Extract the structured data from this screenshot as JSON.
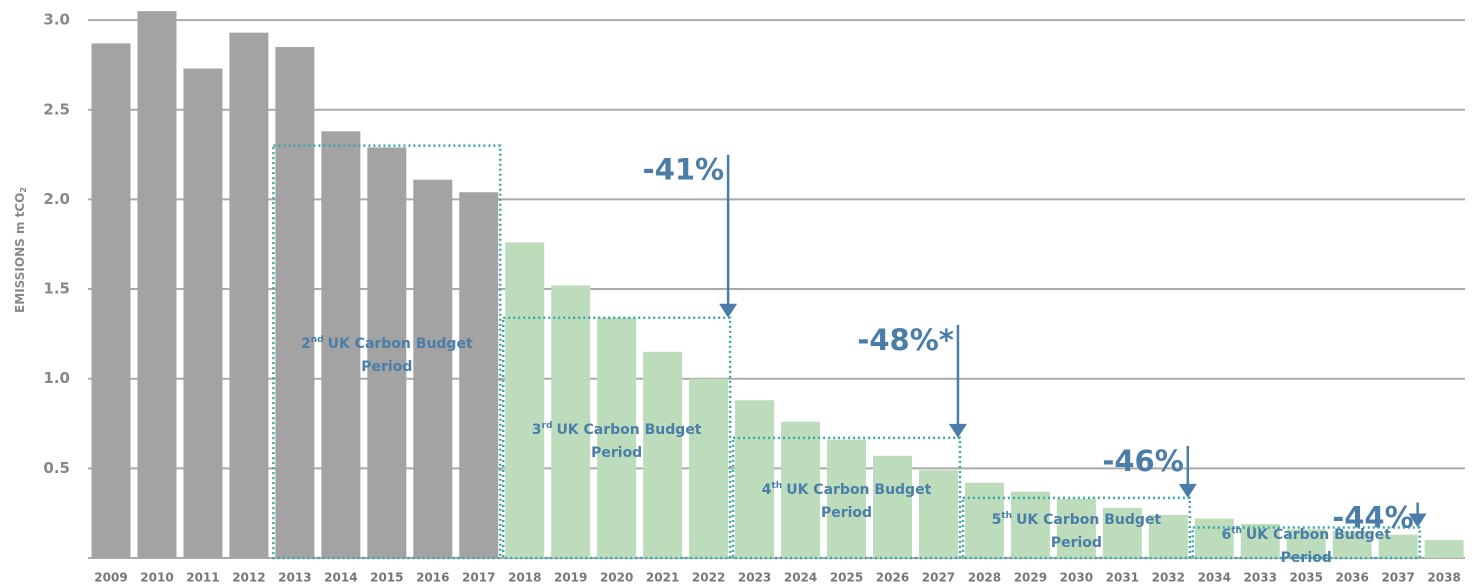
{
  "chart_data": {
    "type": "bar",
    "y_label": "EMISSIONS m tCO",
    "y_label_sub": "2",
    "categories": [
      "2009",
      "2010",
      "2011",
      "2012",
      "2013",
      "2014",
      "2015",
      "2016",
      "2017",
      "2018",
      "2019",
      "2020",
      "2021",
      "2022",
      "2023",
      "2024",
      "2025",
      "2026",
      "2027",
      "2028",
      "2029",
      "2030",
      "2031",
      "2032",
      "2034",
      "2033",
      "2035",
      "2036",
      "2037",
      "2038"
    ],
    "values": [
      2.87,
      3.05,
      2.73,
      2.93,
      2.85,
      2.38,
      2.29,
      2.11,
      2.04,
      1.76,
      1.52,
      1.34,
      1.15,
      1.0,
      0.88,
      0.76,
      0.66,
      0.57,
      0.49,
      0.42,
      0.37,
      0.33,
      0.28,
      0.24,
      0.22,
      0.19,
      0.16,
      0.15,
      0.13,
      0.1
    ],
    "colors": [
      "#a3a3a3",
      "#a3a3a3",
      "#a3a3a3",
      "#a3a3a3",
      "#a3a3a3",
      "#a3a3a3",
      "#a3a3a3",
      "#a3a3a3",
      "#a3a3a3",
      "#bcdcbc",
      "#bcdcbc",
      "#bcdcbc",
      "#bcdcbc",
      "#bcdcbc",
      "#bcdcbc",
      "#bcdcbc",
      "#bcdcbc",
      "#bcdcbc",
      "#bcdcbc",
      "#bcdcbc",
      "#bcdcbc",
      "#bcdcbc",
      "#bcdcbc",
      "#bcdcbc",
      "#bcdcbc",
      "#bcdcbc",
      "#bcdcbc",
      "#bcdcbc",
      "#bcdcbc",
      "#bcdcbc"
    ],
    "ylim": [
      0,
      3.05
    ],
    "yticks": [
      0.5,
      {
        "value": 1,
        "label": "1.0"
      },
      1.5,
      {
        "value": 2,
        "label": "2.0"
      },
      2.5,
      {
        "value": 3,
        "label": "3.0"
      }
    ],
    "grid": true,
    "budgets": [
      {
        "start": "2013",
        "end": "2017",
        "level": 2.3,
        "number": "2",
        "suffix": "nd",
        "line1": "UK Carbon Budget",
        "line2": "Period"
      },
      {
        "start": "2018",
        "end": "2022",
        "level": 1.34,
        "number": "3",
        "suffix": "rd",
        "line1": "UK Carbon Budget",
        "line2": "Period",
        "reduction": "-41%"
      },
      {
        "start": "2023",
        "end": "2027",
        "level": 0.67,
        "number": "4",
        "suffix": "th",
        "line1": "UK Carbon Budget",
        "line2": "Period",
        "reduction": "-48%*"
      },
      {
        "start": "2028",
        "end": "2032",
        "level": 0.335,
        "number": "5",
        "suffix": "th",
        "line1": "UK Carbon Budget",
        "line2": "Period",
        "reduction": "-46%"
      },
      {
        "start": "2034",
        "end": "2037",
        "level": 0.17,
        "number": "6",
        "suffix": "th",
        "line1": "UK Carbon Budget",
        "line2": "Period",
        "reduction": "-44%"
      }
    ]
  }
}
